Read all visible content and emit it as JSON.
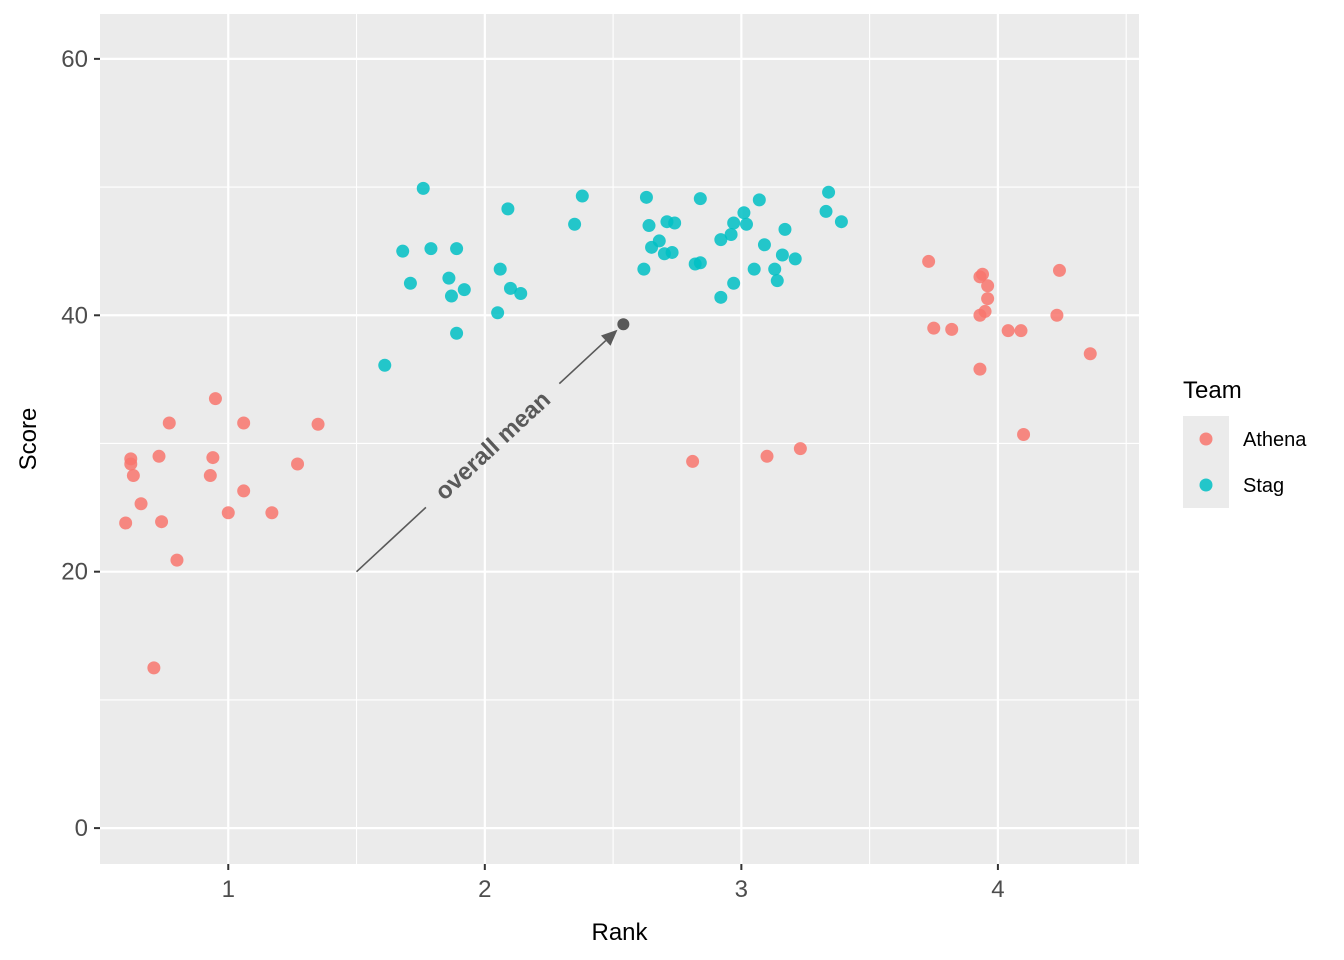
{
  "chart_data": {
    "type": "scatter",
    "title": "",
    "xlabel": "Rank",
    "ylabel": "Score",
    "xlim": [
      0.5,
      4.55
    ],
    "ylim": [
      -2.8,
      63.5
    ],
    "x_ticks": [
      1,
      2,
      3,
      4
    ],
    "y_ticks": [
      0,
      20,
      40,
      60
    ],
    "x_tick_labels": [
      "1",
      "2",
      "3",
      "4"
    ],
    "y_tick_labels": [
      "0",
      "20",
      "40",
      "60"
    ],
    "grid": true,
    "legend": {
      "title": "Team",
      "placement": "right",
      "entries": [
        "Athena",
        "Stag"
      ]
    },
    "colors": {
      "Athena": "#F8766D",
      "Stag": "#00BFC4",
      "panel": "#EBEBEB",
      "annotation": "#595959"
    },
    "series": [
      {
        "name": "Athena",
        "points": [
          [
            0.6,
            23.8
          ],
          [
            0.62,
            28.4
          ],
          [
            0.62,
            28.8
          ],
          [
            0.63,
            27.5
          ],
          [
            0.66,
            25.3
          ],
          [
            0.71,
            12.5
          ],
          [
            0.73,
            29.0
          ],
          [
            0.74,
            23.9
          ],
          [
            0.77,
            31.6
          ],
          [
            0.8,
            20.9
          ],
          [
            0.93,
            27.5
          ],
          [
            0.94,
            28.9
          ],
          [
            0.95,
            33.5
          ],
          [
            1.0,
            24.6
          ],
          [
            1.06,
            31.6
          ],
          [
            1.06,
            26.3
          ],
          [
            1.17,
            24.6
          ],
          [
            1.27,
            28.4
          ],
          [
            1.35,
            31.5
          ],
          [
            2.81,
            28.6
          ],
          [
            3.1,
            29.0
          ],
          [
            3.23,
            29.6
          ],
          [
            3.73,
            44.2
          ],
          [
            3.75,
            39.0
          ],
          [
            3.82,
            38.9
          ],
          [
            3.93,
            43.0
          ],
          [
            3.93,
            35.8
          ],
          [
            3.93,
            40.0
          ],
          [
            3.94,
            43.2
          ],
          [
            3.95,
            40.3
          ],
          [
            3.96,
            41.3
          ],
          [
            3.96,
            42.3
          ],
          [
            4.04,
            38.8
          ],
          [
            4.09,
            38.8
          ],
          [
            4.1,
            30.7
          ],
          [
            4.23,
            40.0
          ],
          [
            4.24,
            43.5
          ],
          [
            4.36,
            37.0
          ]
        ]
      },
      {
        "name": "Stag",
        "points": [
          [
            1.61,
            36.1
          ],
          [
            1.68,
            45.0
          ],
          [
            1.71,
            42.5
          ],
          [
            1.76,
            49.9
          ],
          [
            1.79,
            45.2
          ],
          [
            1.86,
            42.9
          ],
          [
            1.87,
            41.5
          ],
          [
            1.89,
            45.2
          ],
          [
            1.89,
            38.6
          ],
          [
            1.92,
            42.0
          ],
          [
            2.05,
            40.2
          ],
          [
            2.06,
            43.6
          ],
          [
            2.09,
            48.3
          ],
          [
            2.1,
            42.1
          ],
          [
            2.14,
            41.7
          ],
          [
            2.35,
            47.1
          ],
          [
            2.38,
            49.3
          ],
          [
            2.62,
            43.6
          ],
          [
            2.63,
            49.2
          ],
          [
            2.64,
            47.0
          ],
          [
            2.65,
            45.3
          ],
          [
            2.68,
            45.8
          ],
          [
            2.7,
            44.8
          ],
          [
            2.71,
            47.3
          ],
          [
            2.73,
            44.9
          ],
          [
            2.74,
            47.2
          ],
          [
            2.82,
            44.0
          ],
          [
            2.84,
            49.1
          ],
          [
            2.84,
            44.1
          ],
          [
            2.92,
            41.4
          ],
          [
            2.92,
            45.9
          ],
          [
            2.96,
            46.3
          ],
          [
            2.97,
            42.5
          ],
          [
            2.97,
            47.2
          ],
          [
            3.01,
            48.0
          ],
          [
            3.02,
            47.1
          ],
          [
            3.05,
            43.6
          ],
          [
            3.07,
            49.0
          ],
          [
            3.09,
            45.5
          ],
          [
            3.13,
            43.6
          ],
          [
            3.14,
            42.7
          ],
          [
            3.16,
            44.7
          ],
          [
            3.17,
            46.7
          ],
          [
            3.21,
            44.4
          ],
          [
            3.33,
            48.1
          ],
          [
            3.34,
            49.6
          ],
          [
            3.39,
            47.3
          ]
        ]
      }
    ],
    "annotation": {
      "text": "overall mean",
      "point": [
        2.54,
        39.3
      ],
      "arrow_from": [
        1.5,
        20.0
      ]
    }
  }
}
